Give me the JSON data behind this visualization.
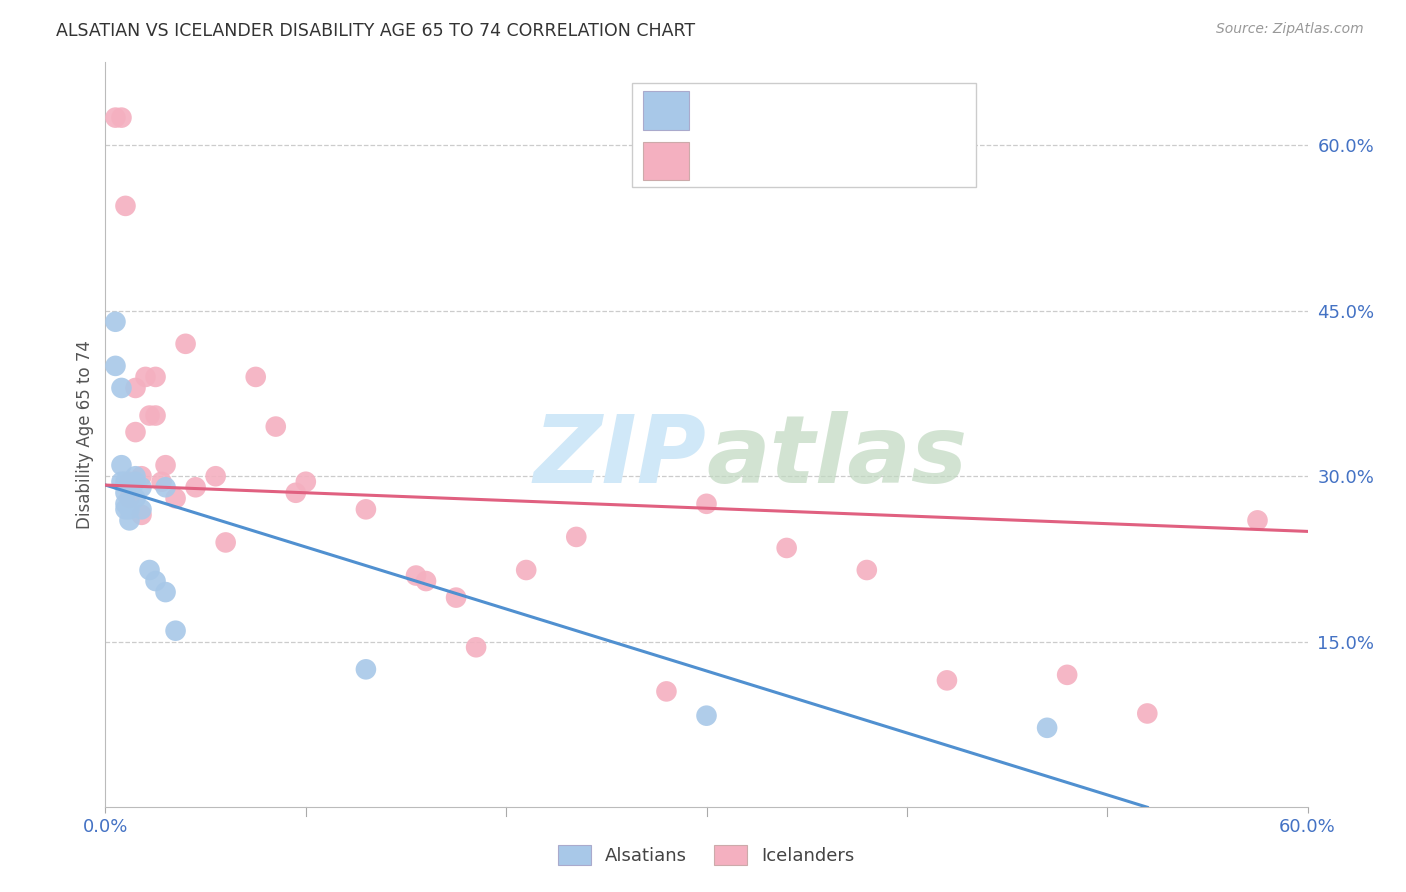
{
  "title": "ALSATIAN VS ICELANDER DISABILITY AGE 65 TO 74 CORRELATION CHART",
  "source": "Source: ZipAtlas.com",
  "ylabel": "Disability Age 65 to 74",
  "right_yticks": [
    "60.0%",
    "45.0%",
    "30.0%",
    "15.0%"
  ],
  "right_ytick_vals": [
    0.6,
    0.45,
    0.3,
    0.15
  ],
  "xmin": 0.0,
  "xmax": 0.6,
  "ymin": 0.0,
  "ymax": 0.675,
  "alsatian_color": "#a8c8e8",
  "icelander_color": "#f4b0c0",
  "alsatian_line_color": "#5090d0",
  "icelander_line_color": "#e06080",
  "text_blue": "#4472c4",
  "watermark_color": "#d0e8f8",
  "alsatians_x": [
    0.005,
    0.005,
    0.008,
    0.008,
    0.008,
    0.01,
    0.01,
    0.01,
    0.01,
    0.012,
    0.012,
    0.015,
    0.015,
    0.015,
    0.018,
    0.018,
    0.022,
    0.025,
    0.03,
    0.03,
    0.035,
    0.13,
    0.3,
    0.47
  ],
  "alsatians_y": [
    0.44,
    0.4,
    0.38,
    0.31,
    0.295,
    0.295,
    0.285,
    0.275,
    0.27,
    0.27,
    0.26,
    0.3,
    0.295,
    0.28,
    0.29,
    0.27,
    0.215,
    0.205,
    0.29,
    0.195,
    0.16,
    0.125,
    0.083,
    0.072
  ],
  "icelanders_x": [
    0.005,
    0.008,
    0.01,
    0.012,
    0.012,
    0.015,
    0.015,
    0.018,
    0.018,
    0.02,
    0.022,
    0.025,
    0.025,
    0.028,
    0.03,
    0.035,
    0.04,
    0.045,
    0.055,
    0.06,
    0.075,
    0.085,
    0.095,
    0.1,
    0.13,
    0.155,
    0.16,
    0.175,
    0.185,
    0.21,
    0.235,
    0.28,
    0.3,
    0.34,
    0.38,
    0.42,
    0.48,
    0.52,
    0.575
  ],
  "icelanders_y": [
    0.625,
    0.625,
    0.545,
    0.295,
    0.28,
    0.38,
    0.34,
    0.3,
    0.265,
    0.39,
    0.355,
    0.39,
    0.355,
    0.295,
    0.31,
    0.28,
    0.42,
    0.29,
    0.3,
    0.24,
    0.39,
    0.345,
    0.285,
    0.295,
    0.27,
    0.21,
    0.205,
    0.19,
    0.145,
    0.215,
    0.245,
    0.105,
    0.275,
    0.235,
    0.215,
    0.115,
    0.12,
    0.085,
    0.26
  ],
  "alsatian_trend_x0": 0.0,
  "alsatian_trend_y0": 0.292,
  "alsatian_trend_x1": 0.52,
  "alsatian_trend_y1": 0.0,
  "icelander_trend_x0": 0.0,
  "icelander_trend_y0": 0.292,
  "icelander_trend_x1": 0.6,
  "icelander_trend_y1": 0.25
}
